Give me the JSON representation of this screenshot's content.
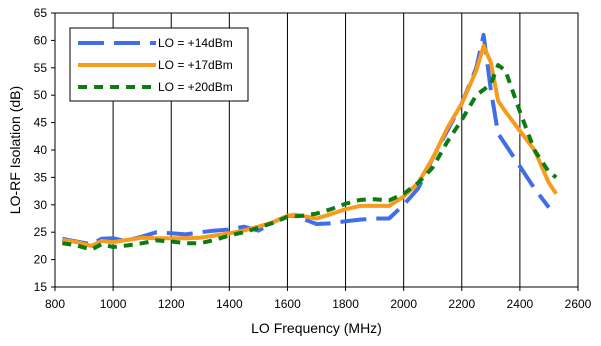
{
  "chart_data": {
    "type": "line",
    "title": "",
    "xlabel": "LO Frequency (MHz)",
    "ylabel": "LO-RF Isolation (dB)",
    "xlim": [
      800,
      2600
    ],
    "ylim": [
      15,
      65
    ],
    "xticks": [
      800,
      1000,
      1200,
      1400,
      1600,
      1800,
      2000,
      2200,
      2400,
      2600
    ],
    "yticks": [
      15,
      20,
      25,
      30,
      35,
      40,
      45,
      50,
      55,
      60,
      65
    ],
    "grid": "vertical",
    "legend_position": "top-left",
    "series": [
      {
        "name": "LO = +14dBm",
        "color": "#3f6ee8",
        "dash": "long-dash",
        "x": [
          825,
          925,
          960,
          1000,
          1040,
          1100,
          1150,
          1200,
          1250,
          1300,
          1350,
          1400,
          1450,
          1500,
          1550,
          1600,
          1625,
          1700,
          1750,
          1800,
          1850,
          1900,
          1950,
          2000,
          2050,
          2100,
          2150,
          2200,
          2250,
          2275,
          2300,
          2325,
          2350,
          2400,
          2450,
          2500
        ],
        "y": [
          23.8,
          22.8,
          23.8,
          23.9,
          23.4,
          24.2,
          25.0,
          24.8,
          24.6,
          25.0,
          25.3,
          25.5,
          26.0,
          25.3,
          26.8,
          28.0,
          28.0,
          26.5,
          26.6,
          27.0,
          27.3,
          27.5,
          27.5,
          30.0,
          33.0,
          38.5,
          43.5,
          48.5,
          55.0,
          61.0,
          51.0,
          43.0,
          41.0,
          37.0,
          33.0,
          29.5
        ]
      },
      {
        "name": "LO = +17dBm",
        "color": "#f59b1e",
        "dash": "solid",
        "x": [
          825,
          875,
          925,
          960,
          1000,
          1050,
          1100,
          1150,
          1200,
          1250,
          1300,
          1350,
          1400,
          1450,
          1500,
          1550,
          1600,
          1625,
          1650,
          1700,
          1750,
          1800,
          1850,
          1900,
          1950,
          2000,
          2050,
          2100,
          2150,
          2200,
          2250,
          2275,
          2300,
          2325,
          2350,
          2400,
          2450,
          2500,
          2525
        ],
        "y": [
          23.6,
          23.2,
          22.5,
          23.4,
          23.2,
          23.6,
          24.0,
          23.9,
          23.9,
          23.9,
          24.0,
          24.4,
          24.8,
          25.3,
          26.0,
          26.8,
          28.0,
          28.2,
          28.0,
          27.5,
          28.3,
          29.2,
          29.8,
          29.8,
          29.8,
          31.5,
          34.0,
          38.5,
          44.0,
          48.5,
          54.5,
          59.0,
          56.0,
          49.0,
          47.0,
          43.5,
          40.0,
          34.0,
          32.0
        ]
      },
      {
        "name": "LO = +20dBm",
        "color": "#0e7a12",
        "dash": "short-dash",
        "x": [
          825,
          875,
          925,
          960,
          1000,
          1050,
          1100,
          1150,
          1200,
          1250,
          1300,
          1350,
          1400,
          1450,
          1500,
          1550,
          1600,
          1650,
          1700,
          1750,
          1800,
          1850,
          1900,
          1950,
          2000,
          2050,
          2100,
          2150,
          2200,
          2250,
          2300,
          2325,
          2350,
          2400,
          2450,
          2500,
          2525
        ],
        "y": [
          23.0,
          22.6,
          21.8,
          22.8,
          22.3,
          22.6,
          23.0,
          23.5,
          23.3,
          23.0,
          23.0,
          23.6,
          24.4,
          25.0,
          25.8,
          26.7,
          27.8,
          28.0,
          28.4,
          29.2,
          30.2,
          30.9,
          31.0,
          30.8,
          32.0,
          34.0,
          36.8,
          41.5,
          45.5,
          50.0,
          52.0,
          55.5,
          54.5,
          47.0,
          40.0,
          36.0,
          35.0
        ]
      }
    ]
  }
}
